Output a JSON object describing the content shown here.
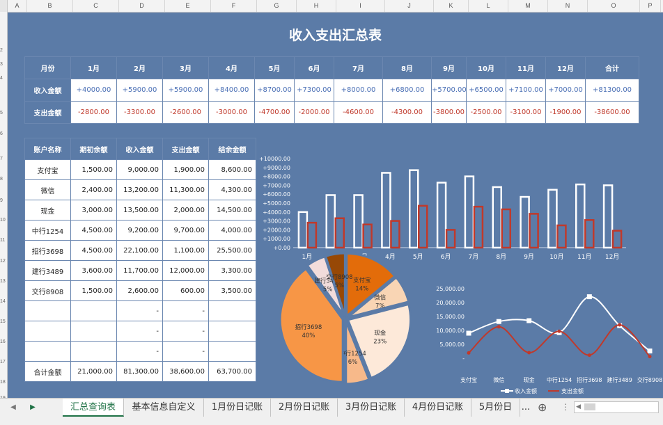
{
  "columns": [
    "A",
    "B",
    "C",
    "D",
    "E",
    "F",
    "G",
    "H",
    "I",
    "J",
    "K",
    "L",
    "M",
    "N",
    "O",
    "P"
  ],
  "rows": [
    "2",
    "3",
    "4",
    "5",
    "6",
    "7",
    "8",
    "9",
    "10",
    "11",
    "12",
    "13",
    "14",
    "15",
    "16",
    "17",
    "18",
    "19",
    "20"
  ],
  "title": "收入支出汇总表",
  "summary": {
    "header": [
      "月份",
      "1月",
      "2月",
      "3月",
      "4月",
      "5月",
      "6月",
      "7月",
      "8月",
      "9月",
      "10月",
      "11月",
      "12月",
      "合计"
    ],
    "income_label": "收入金额",
    "income": [
      "+4000.00",
      "+5900.00",
      "+5900.00",
      "+8400.00",
      "+8700.00",
      "+7300.00",
      "+8000.00",
      "+6800.00",
      "+5700.00",
      "+6500.00",
      "+7100.00",
      "+7000.00",
      "+81300.00"
    ],
    "expense_label": "支出金额",
    "expense": [
      "-2800.00",
      "-3300.00",
      "-2600.00",
      "-3000.00",
      "-4700.00",
      "-2000.00",
      "-4600.00",
      "-4300.00",
      "-3800.00",
      "-2500.00",
      "-3100.00",
      "-1900.00",
      "-38600.00"
    ]
  },
  "accounts": {
    "header": [
      "账户名称",
      "期初余额",
      "收入金额",
      "支出金额",
      "结余金额"
    ],
    "rows": [
      [
        "支付宝",
        "1,500.00",
        "9,000.00",
        "1,900.00",
        "8,600.00"
      ],
      [
        "微信",
        "2,400.00",
        "13,200.00",
        "11,300.00",
        "4,300.00"
      ],
      [
        "现金",
        "3,000.00",
        "13,500.00",
        "2,000.00",
        "14,500.00"
      ],
      [
        "中行1254",
        "4,500.00",
        "9,200.00",
        "9,700.00",
        "4,000.00"
      ],
      [
        "招行3698",
        "4,500.00",
        "22,100.00",
        "1,100.00",
        "25,500.00"
      ],
      [
        "建行3489",
        "3,600.00",
        "11,700.00",
        "12,000.00",
        "3,300.00"
      ],
      [
        "交行8908",
        "1,500.00",
        "2,600.00",
        "600.00",
        "3,500.00"
      ],
      [
        "",
        "",
        "-",
        "-",
        ""
      ],
      [
        "",
        "",
        "-",
        "-",
        ""
      ],
      [
        "",
        "",
        "-",
        "-",
        ""
      ]
    ],
    "total": [
      "合计金额",
      "21,000.00",
      "81,300.00",
      "38,600.00",
      "63,700.00"
    ]
  },
  "chart_data": [
    {
      "type": "bar",
      "categories": [
        "1月",
        "2月",
        "3月",
        "4月",
        "5月",
        "6月",
        "7月",
        "8月",
        "9月",
        "10月",
        "11月",
        "12月"
      ],
      "series": [
        {
          "name": "收入金额",
          "values": [
            4000,
            5900,
            5900,
            8400,
            8700,
            7300,
            8000,
            6800,
            5700,
            6500,
            7100,
            7000
          ],
          "color": "#ffffff"
        },
        {
          "name": "支出金额",
          "values": [
            2800,
            3300,
            2600,
            3000,
            4700,
            2000,
            4600,
            4300,
            3800,
            2500,
            3100,
            1900
          ],
          "color": "#c0392b"
        }
      ],
      "ylim": [
        0,
        10000
      ],
      "yticks": [
        "+0.00",
        "+1000.00",
        "+2000.00",
        "+3000.00",
        "+4000.00",
        "+5000.00",
        "+6000.00",
        "+7000.00",
        "+8000.00",
        "+9000.00",
        "+10000.00"
      ],
      "legend": "none"
    },
    {
      "type": "pie",
      "labels": [
        "支付宝",
        "微信",
        "现金",
        "中行1254",
        "招行3698",
        "建行3489",
        "交行8908"
      ],
      "values": [
        14,
        7,
        23,
        6,
        40,
        5,
        5
      ],
      "pct_labels": [
        "14%",
        "7%",
        "23%",
        "6%",
        "40%",
        "5%",
        "5%"
      ],
      "colors": [
        "#e36c0a",
        "#f9d5b4",
        "#fde9d9",
        "#f7b98a",
        "#f79646",
        "#f2dcdb",
        "#974806"
      ]
    },
    {
      "type": "line",
      "categories": [
        "支付宝",
        "微信",
        "现金",
        "中行1254",
        "招行3698",
        "建行3489",
        "交行8908"
      ],
      "series": [
        {
          "name": "收入金额",
          "values": [
            9000,
            13200,
            13500,
            9200,
            22100,
            11700,
            2600
          ],
          "color": "#ffffff"
        },
        {
          "name": "支出金额",
          "values": [
            1900,
            11300,
            2000,
            9700,
            1100,
            12000,
            600
          ],
          "color": "#c0392b"
        }
      ],
      "ylim": [
        0,
        25000
      ],
      "yticks": [
        "-",
        "5,000.00",
        "10,000.00",
        "15,000.00",
        "20,000.00",
        "25,000.00"
      ],
      "legend": "bottom"
    }
  ],
  "tabs": [
    "汇总查询表",
    "基本信息自定义",
    "1月份日记账",
    "2月份日记账",
    "3月份日记账",
    "4月份日记账",
    "5月份日"
  ],
  "tab_more": "...",
  "add_sheet": "⊕"
}
